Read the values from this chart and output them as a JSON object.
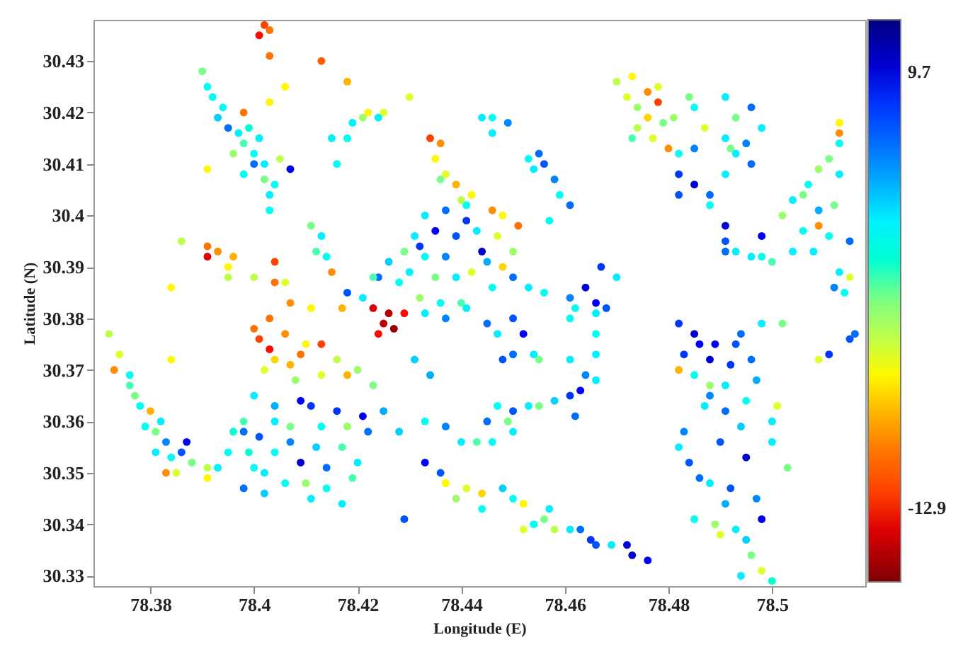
{
  "chart_data": {
    "type": "scatter",
    "xlabel": "Longitude (E)",
    "ylabel": "Latitude (N)",
    "xlim": [
      78.369,
      78.518
    ],
    "ylim": [
      30.328,
      30.438
    ],
    "xticks": [
      78.38,
      78.4,
      78.42,
      78.44,
      78.46,
      78.48,
      78.5
    ],
    "yticks": [
      30.33,
      30.34,
      30.35,
      30.36,
      30.37,
      30.38,
      30.39,
      30.4,
      30.41,
      30.42,
      30.43
    ],
    "clim": [
      -16.7,
      12.4
    ],
    "cticks": [
      -12.9,
      9.7
    ],
    "marker": "circle",
    "series": [
      {
        "x": [
          78.402,
          78.403,
          78.401,
          78.403,
          78.413,
          78.418,
          78.406,
          78.403,
          78.43,
          78.39,
          78.391,
          78.392,
          78.394,
          78.398,
          78.395,
          78.397,
          78.398,
          78.4,
          78.4,
          78.402,
          78.402,
          78.404,
          78.403,
          78.403,
          78.396,
          78.407,
          78.391,
          78.393,
          78.399,
          78.401,
          78.405,
          78.398,
          78.415,
          78.418,
          78.416,
          78.419,
          78.421,
          78.425,
          78.422,
          78.424,
          78.434,
          78.436,
          78.435,
          78.437,
          78.439,
          78.442,
          78.436,
          78.44,
          78.444,
          78.446,
          78.449,
          78.446,
          78.453,
          78.455,
          78.456,
          78.454,
          78.458,
          78.459,
          78.461,
          78.457,
          78.433,
          78.437,
          78.441,
          78.446,
          78.448,
          78.451,
          78.431,
          78.435,
          78.439,
          78.443,
          78.447,
          78.45,
          78.429,
          78.433,
          78.437,
          78.444,
          78.442,
          78.43,
          78.435,
          78.439,
          78.446,
          78.45,
          78.432,
          78.436,
          78.44,
          78.428,
          78.424,
          78.421,
          78.418,
          78.423,
          78.441,
          78.445,
          78.448,
          78.426,
          78.432,
          78.453,
          78.456,
          78.461,
          78.464,
          78.466,
          78.468,
          78.466,
          78.462,
          78.467,
          78.47,
          78.391,
          78.391,
          78.393,
          78.395,
          78.396,
          78.395,
          78.386,
          78.384,
          78.404,
          78.404,
          78.406,
          78.4,
          78.415,
          78.411,
          78.413,
          78.412,
          78.414,
          78.407,
          78.411,
          78.417,
          78.403,
          78.423,
          78.425,
          78.427,
          78.424,
          78.429,
          78.426,
          78.433,
          78.437,
          78.441,
          78.445,
          78.45,
          78.447,
          78.452,
          78.461,
          78.448,
          78.45,
          78.454,
          78.455,
          78.461,
          78.466,
          78.431,
          78.434,
          78.372,
          78.374,
          78.373,
          78.376,
          78.384,
          78.377,
          78.378,
          78.38,
          78.379,
          78.381,
          78.383,
          78.381,
          78.387,
          78.384,
          78.383,
          78.385,
          78.388,
          78.391,
          78.391,
          78.393,
          78.395,
          78.396,
          78.398,
          78.398,
          78.376,
          78.382,
          78.386,
          78.403,
          78.4,
          78.406,
          78.41,
          78.413,
          78.402,
          78.407,
          78.413,
          78.418,
          78.423,
          78.401,
          78.404,
          78.409,
          78.416,
          78.42,
          78.408,
          78.4,
          78.409,
          78.411,
          78.416,
          78.421,
          78.398,
          78.401,
          78.404,
          78.407,
          78.413,
          78.418,
          78.422,
          78.428,
          78.409,
          78.404,
          78.414,
          78.402,
          78.406,
          78.41,
          78.414,
          78.417,
          78.402,
          78.419,
          78.4,
          78.429,
          78.404,
          78.412,
          78.417,
          78.42,
          78.407,
          78.411,
          78.399,
          78.425,
          78.433,
          78.437,
          78.433,
          78.436,
          78.437,
          78.441,
          78.444,
          78.444,
          78.44,
          78.443,
          78.439,
          78.445,
          78.447,
          78.45,
          78.453,
          78.455,
          78.461,
          78.462,
          78.463,
          78.466,
          78.466,
          78.449,
          78.446,
          78.45,
          78.458,
          78.464,
          78.45,
          78.452,
          78.452,
          78.454,
          78.456,
          78.458,
          78.461,
          78.463,
          78.466,
          78.465,
          78.472,
          78.473,
          78.476,
          78.469,
          78.448,
          78.457,
          78.482,
          78.485,
          78.489,
          78.493,
          78.498,
          78.502,
          78.483,
          78.488,
          78.492,
          78.496,
          78.482,
          78.485,
          78.488,
          78.491,
          78.495,
          78.501,
          78.5,
          78.487,
          78.491,
          78.483,
          78.49,
          78.495,
          78.503,
          78.486,
          78.488,
          78.492,
          78.498,
          78.485,
          78.489,
          78.493,
          78.49,
          78.496,
          78.498,
          78.494,
          78.5,
          78.482,
          78.5,
          78.486,
          78.494,
          78.497,
          78.484,
          78.494,
          78.497,
          78.491,
          78.495,
          78.488,
          78.509,
          78.511,
          78.515,
          78.516,
          78.47,
          78.473,
          78.476,
          78.478,
          78.472,
          78.474,
          78.478,
          78.477,
          78.48,
          78.474,
          78.473,
          78.476,
          78.479,
          78.484,
          78.485,
          78.491,
          78.496,
          78.493,
          78.481,
          78.487,
          78.491,
          78.495,
          78.498,
          78.482,
          78.485,
          78.492,
          78.493,
          78.496,
          78.482,
          78.485,
          78.488,
          78.491,
          78.482,
          78.488,
          78.491,
          78.491,
          78.491,
          78.493,
          78.498,
          78.496,
          78.498,
          78.5,
          78.504,
          78.513,
          78.513,
          78.513,
          78.511,
          78.513,
          78.509,
          78.507,
          78.506,
          78.504,
          78.502,
          78.512,
          78.509,
          78.511,
          78.515,
          78.508,
          78.513,
          78.515,
          78.512,
          78.514,
          78.509,
          78.506
        ],
        "values": [
          30.437,
          30.436,
          30.435,
          30.431,
          30.43,
          30.426,
          30.425,
          30.422,
          30.423,
          30.428,
          30.425,
          30.423,
          30.421,
          30.42,
          30.417,
          30.416,
          30.414,
          30.412,
          30.41,
          30.41,
          30.407,
          30.406,
          30.404,
          30.401,
          30.412,
          30.409,
          30.409,
          30.419,
          30.417,
          30.415,
          30.411,
          30.408,
          30.415,
          30.415,
          30.41,
          30.418,
          30.419,
          30.42,
          30.42,
          30.419,
          30.415,
          30.414,
          30.411,
          30.408,
          30.406,
          30.404,
          30.407,
          30.403,
          30.419,
          30.419,
          30.418,
          30.416,
          30.411,
          30.412,
          30.41,
          30.409,
          30.407,
          30.404,
          30.402,
          30.399,
          30.4,
          30.401,
          30.402,
          30.401,
          30.4,
          30.398,
          30.396,
          30.397,
          30.396,
          30.397,
          30.396,
          30.393,
          30.393,
          30.392,
          30.392,
          30.393,
          30.389,
          30.389,
          30.388,
          30.388,
          30.386,
          30.388,
          30.384,
          30.383,
          30.383,
          30.387,
          30.388,
          30.384,
          30.385,
          30.388,
          30.399,
          30.391,
          30.39,
          30.391,
          30.394,
          30.386,
          30.385,
          30.384,
          30.386,
          30.383,
          30.382,
          30.381,
          30.382,
          30.39,
          30.388,
          30.392,
          30.394,
          30.393,
          30.39,
          30.392,
          30.388,
          30.395,
          30.386,
          30.391,
          30.387,
          30.387,
          30.388,
          30.389,
          30.398,
          30.396,
          30.393,
          30.392,
          30.383,
          30.382,
          30.382,
          30.38,
          30.382,
          30.379,
          30.378,
          30.377,
          30.381,
          30.381,
          30.381,
          30.38,
          30.382,
          30.379,
          30.38,
          30.377,
          30.377,
          30.38,
          30.372,
          30.373,
          30.373,
          30.372,
          30.372,
          30.377,
          30.372,
          30.369,
          30.377,
          30.373,
          30.37,
          30.369,
          30.372,
          30.365,
          30.363,
          30.362,
          30.359,
          30.358,
          30.356,
          30.354,
          30.356,
          30.353,
          30.35,
          30.35,
          30.352,
          30.351,
          30.349,
          30.351,
          30.354,
          30.358,
          30.36,
          30.347,
          30.367,
          30.36,
          30.354,
          30.374,
          30.378,
          30.377,
          30.375,
          30.375,
          30.37,
          30.371,
          30.369,
          30.369,
          30.367,
          30.376,
          30.372,
          30.373,
          30.372,
          30.37,
          30.368,
          30.365,
          30.364,
          30.363,
          30.362,
          30.361,
          30.358,
          30.357,
          30.36,
          30.359,
          30.359,
          30.359,
          30.358,
          30.358,
          30.352,
          30.354,
          30.351,
          30.35,
          30.348,
          30.348,
          30.347,
          30.344,
          30.346,
          30.349,
          30.351,
          30.341,
          30.363,
          30.355,
          30.355,
          30.352,
          30.356,
          30.345,
          30.354,
          30.362,
          30.36,
          30.359,
          30.352,
          30.35,
          30.348,
          30.347,
          30.346,
          30.343,
          30.356,
          30.356,
          30.345,
          30.36,
          30.363,
          30.362,
          30.363,
          30.363,
          30.365,
          30.361,
          30.366,
          30.368,
          30.373,
          30.36,
          30.356,
          30.358,
          30.364,
          30.369,
          30.345,
          30.344,
          30.339,
          30.34,
          30.341,
          30.339,
          30.339,
          30.339,
          30.336,
          30.337,
          30.336,
          30.334,
          30.333,
          30.336,
          30.347,
          30.343,
          30.379,
          30.377,
          30.375,
          30.375,
          30.379,
          30.379,
          30.373,
          30.372,
          30.371,
          30.372,
          30.37,
          30.369,
          30.367,
          30.367,
          30.364,
          30.363,
          30.36,
          30.363,
          30.362,
          30.358,
          30.356,
          30.353,
          30.351,
          30.349,
          30.348,
          30.347,
          30.341,
          30.341,
          30.34,
          30.339,
          30.338,
          30.334,
          30.331,
          30.33,
          30.329,
          30.355,
          30.356,
          30.375,
          30.377,
          30.368,
          30.352,
          30.359,
          30.345,
          30.344,
          30.337,
          30.365,
          30.372,
          30.373,
          30.376,
          30.377,
          30.426,
          30.427,
          30.424,
          30.422,
          30.423,
          30.421,
          30.425,
          30.415,
          30.413,
          30.417,
          30.415,
          30.419,
          30.418,
          30.423,
          30.421,
          30.423,
          30.421,
          30.419,
          30.419,
          30.417,
          30.415,
          30.414,
          30.417,
          30.412,
          30.413,
          30.413,
          30.412,
          30.41,
          30.408,
          30.406,
          30.404,
          30.408,
          30.404,
          30.402,
          30.398,
          30.395,
          30.393,
          30.393,
          30.396,
          30.392,
          30.392,
          30.391,
          30.393,
          30.418,
          30.416,
          30.414,
          30.411,
          30.408,
          30.409,
          30.406,
          30.404,
          30.403,
          30.4,
          30.402,
          30.398,
          30.396,
          30.395,
          30.393,
          30.389,
          30.388,
          30.386,
          30.385,
          30.401,
          30.397
        ],
        "cvalues": [
          -12,
          -10,
          -13,
          -10,
          -11,
          -8,
          -6,
          -6,
          -5,
          -2,
          1,
          1,
          1,
          -10,
          6,
          2,
          -1,
          1,
          6,
          2,
          -2,
          1,
          2,
          1,
          -3,
          9,
          -6,
          3,
          0,
          2,
          -4,
          1,
          2,
          1,
          1,
          2,
          -3,
          -5,
          -6,
          2,
          -12,
          -9,
          -6,
          -5,
          -8,
          -6,
          -2,
          -4,
          2,
          1,
          5,
          2,
          1,
          6,
          7,
          2,
          5,
          1,
          6,
          1,
          2,
          6,
          1,
          -9,
          -6,
          -10,
          2,
          9,
          7,
          2,
          -5,
          -3,
          -2,
          1,
          5,
          10,
          -5,
          2,
          -2,
          2,
          1,
          6,
          -3,
          1,
          -1,
          1,
          6,
          2,
          7,
          -1,
          8,
          4,
          -7,
          3,
          8,
          2,
          1,
          5,
          10,
          9,
          7,
          2,
          1,
          8,
          2,
          -14,
          -10,
          -9,
          -6,
          -8,
          -4,
          -4,
          -6,
          -12,
          -10,
          -5,
          -4,
          -9,
          -2,
          2,
          -1,
          1,
          -9,
          -6,
          -8,
          -10,
          -14,
          -15,
          -16,
          -13,
          -13,
          -15,
          2,
          5,
          2,
          6,
          7,
          2,
          9,
          1,
          7,
          6,
          2,
          -2,
          2,
          1,
          3,
          4,
          -4,
          -5,
          -9,
          1,
          -6,
          -2,
          1,
          -8,
          1,
          -2,
          5,
          2,
          9,
          1,
          -9,
          -5,
          -2,
          -4,
          -6,
          2,
          1,
          0,
          -1,
          6,
          -1,
          2,
          7,
          -13,
          -10,
          -9,
          -6,
          -12,
          -5,
          -8,
          -5,
          -8,
          -2,
          -12,
          -7,
          -10,
          -4,
          -3,
          -3,
          2,
          9,
          8,
          8,
          9,
          6,
          7,
          2,
          -2,
          1,
          -3,
          6,
          3,
          10,
          1,
          6,
          2,
          1,
          -3,
          1,
          2,
          3,
          -1,
          1,
          7,
          4,
          3,
          -1,
          2,
          5,
          2,
          0,
          4,
          1,
          5,
          9,
          7,
          -6,
          -5,
          -7,
          1,
          2,
          -1,
          -3,
          6,
          1,
          7,
          2,
          -2,
          8,
          6,
          9,
          2,
          2,
          -2,
          1,
          2,
          3,
          5,
          1,
          -6,
          -5,
          1,
          -2,
          -4,
          2,
          6,
          7,
          8,
          10,
          10,
          9,
          2,
          3,
          2,
          8,
          10,
          9,
          7,
          2,
          -2,
          8,
          10,
          8,
          6,
          -8,
          1,
          -3,
          2,
          1,
          -5,
          2,
          2,
          6,
          5,
          7,
          10,
          -2,
          6,
          2,
          7,
          9,
          1,
          -3,
          2,
          -5,
          -2,
          -5,
          2,
          0,
          2,
          2,
          9,
          6,
          4,
          7,
          3,
          5,
          4,
          3,
          5,
          -5,
          8,
          7,
          6,
          -4,
          -6,
          -9,
          -12,
          -5,
          -3,
          -5,
          -5,
          -9,
          -4,
          -1,
          -7,
          -2,
          -2,
          1,
          2,
          6,
          -2,
          -3,
          -5,
          2,
          5,
          2,
          1,
          5,
          -2,
          2,
          6,
          8,
          10,
          6,
          2,
          7,
          1,
          10,
          7,
          6,
          2,
          9,
          2,
          1,
          -1,
          2,
          -6,
          -9,
          1,
          -2,
          2,
          -3,
          1,
          -2,
          2,
          -3,
          -2,
          -9,
          1,
          6,
          2,
          2,
          -5,
          5,
          1,
          4,
          1
        ]
      }
    ]
  }
}
